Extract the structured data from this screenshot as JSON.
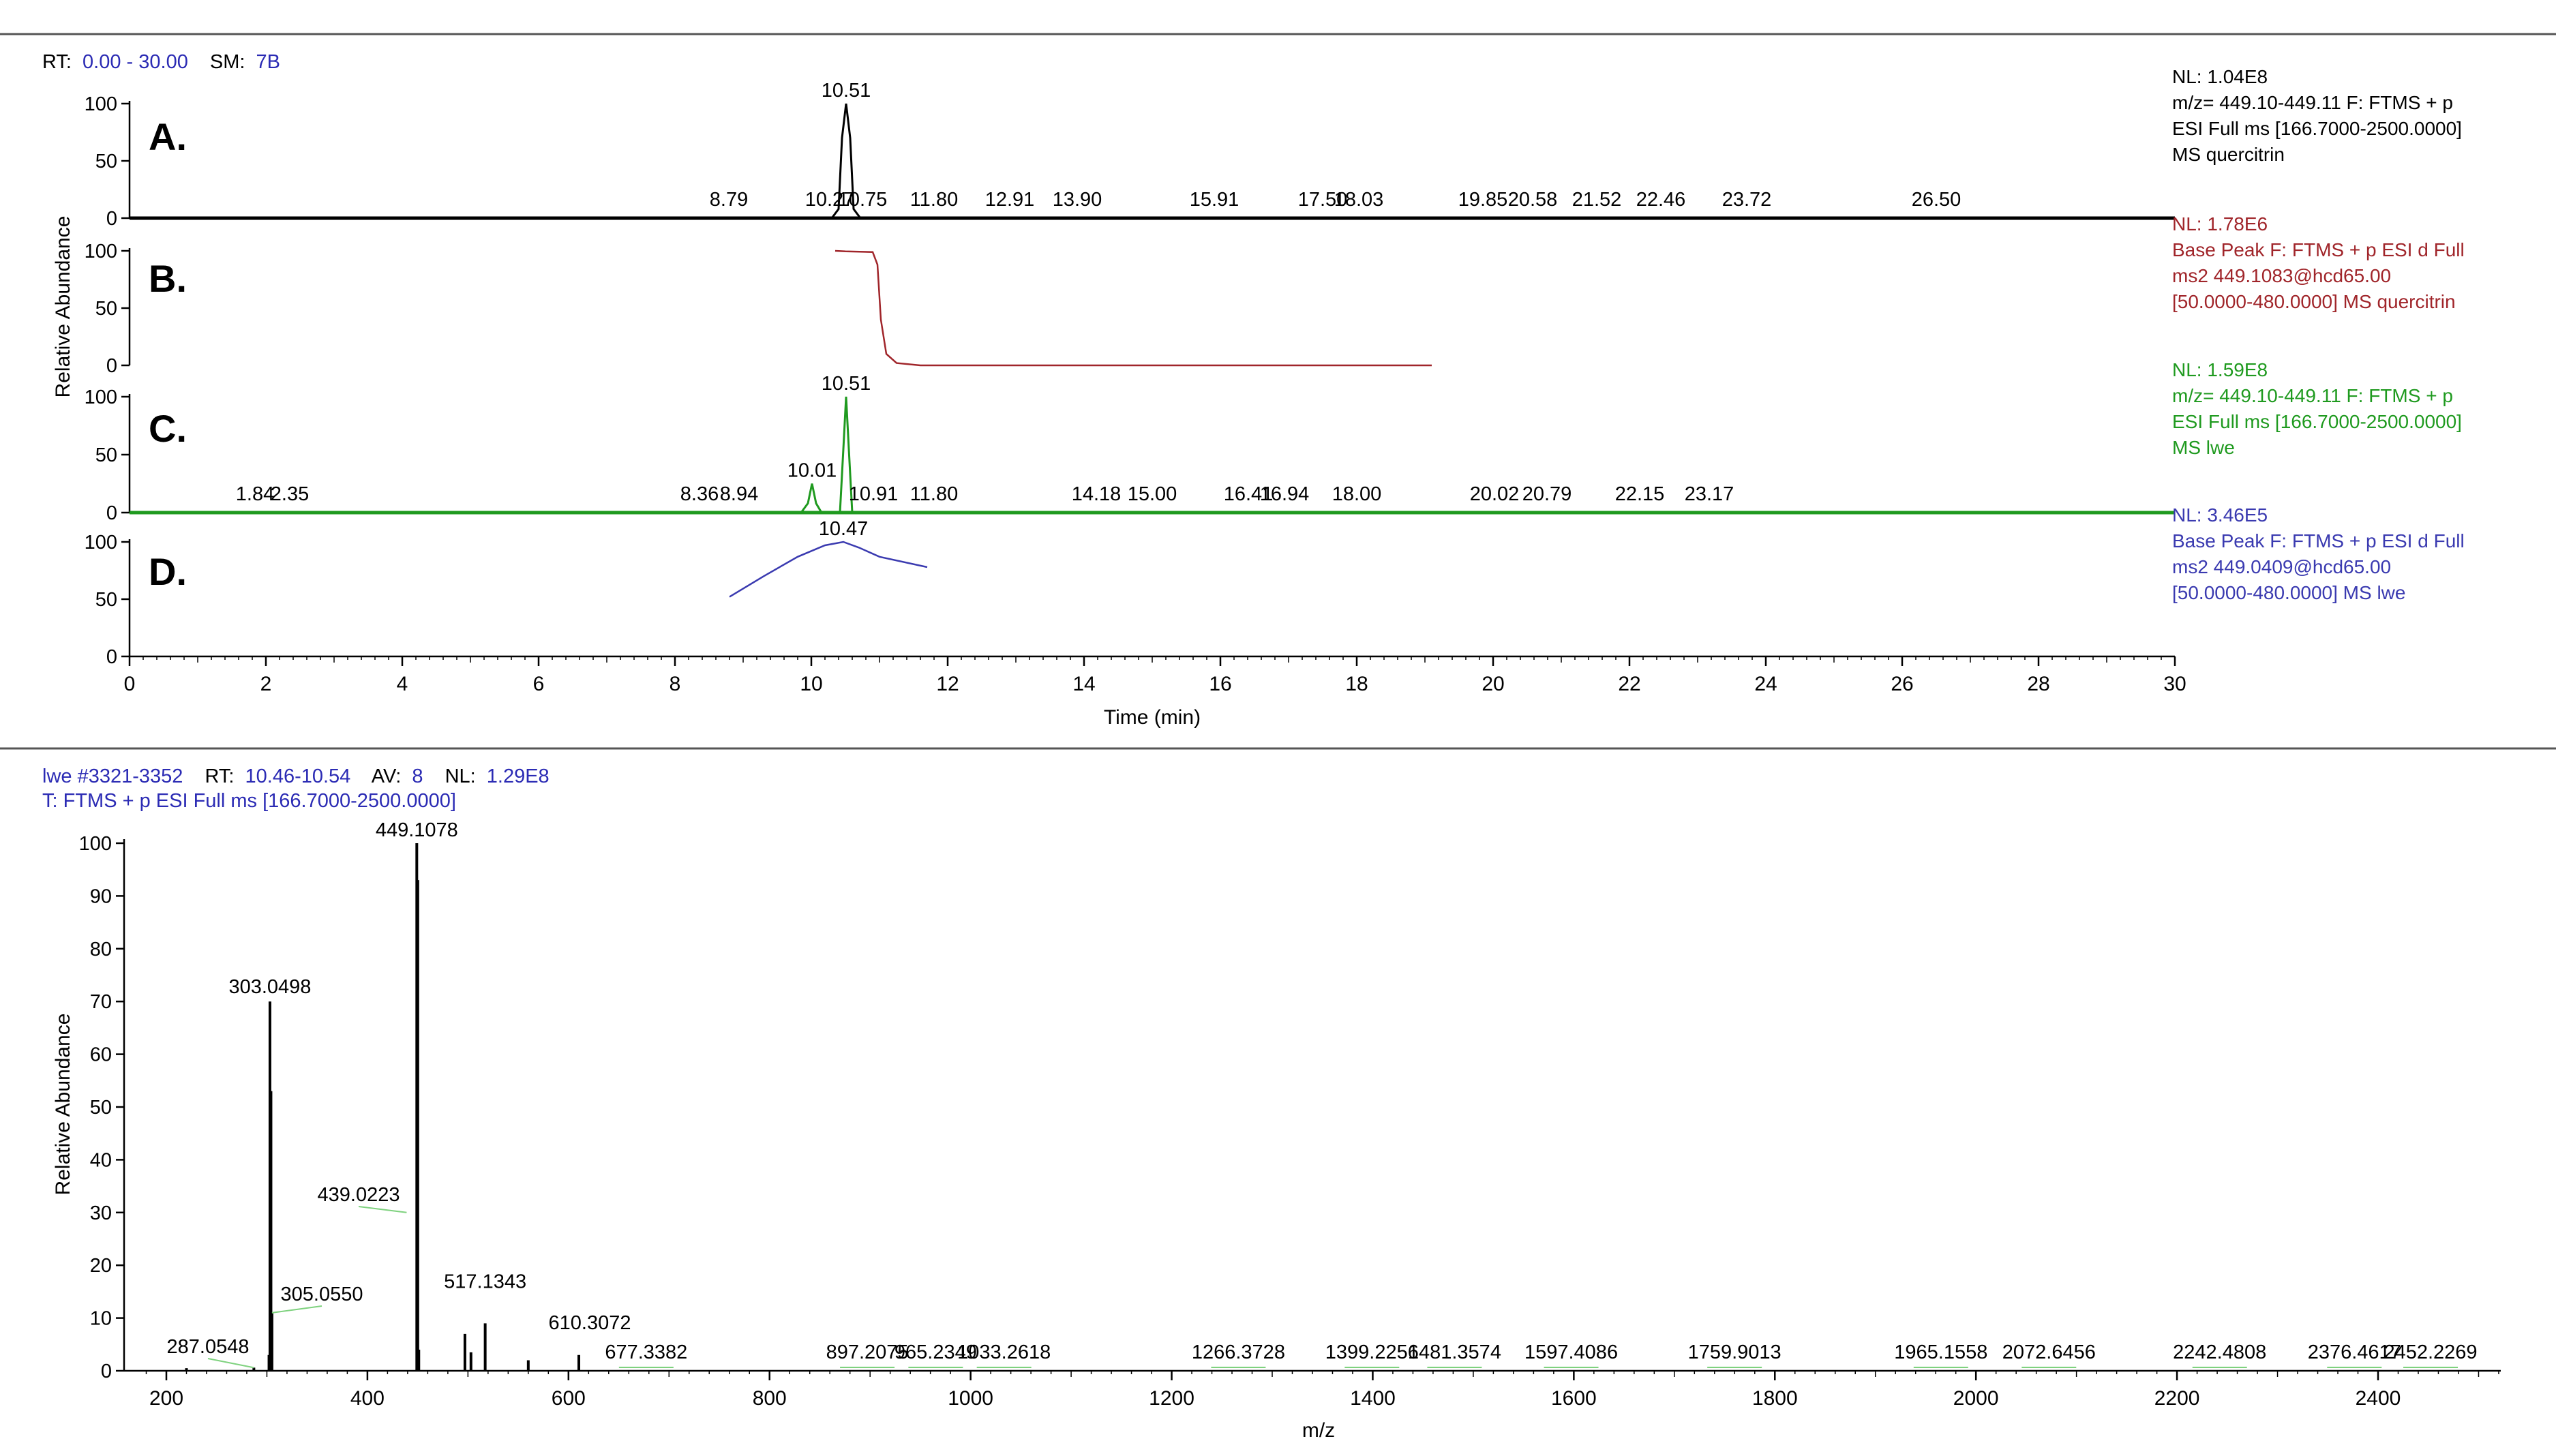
{
  "chromatogram": {
    "header": {
      "rt_label": "RT:",
      "rt_value": "0.00 - 30.00",
      "sm_label": "SM:",
      "sm_value": "7B"
    },
    "ylabel": "Relative Abundance",
    "xlabel": "Time (min)",
    "x_ticks": [
      "0",
      "2",
      "4",
      "6",
      "8",
      "10",
      "12",
      "14",
      "16",
      "18",
      "20",
      "22",
      "24",
      "26",
      "28",
      "30"
    ],
    "y_ticks": [
      "0",
      "50",
      "100"
    ]
  },
  "spectrum": {
    "header_line1": {
      "scan": "lwe #3321-3352",
      "rt_label": "RT:",
      "rt_value": "10.46-10.54",
      "av_label": "AV:",
      "av_value": "8",
      "nl_label": "NL:",
      "nl_value": "1.29E8"
    },
    "header_line2": "T: FTMS + p ESI Full ms [166.7000-2500.0000]",
    "ylabel": "Relative Abundance",
    "xlabel": "m/z",
    "x_ticks": [
      "200",
      "400",
      "600",
      "800",
      "1000",
      "1200",
      "1400",
      "1600",
      "1800",
      "2000",
      "2200",
      "2400"
    ],
    "y_ticks": [
      "0",
      "10",
      "20",
      "30",
      "40",
      "50",
      "60",
      "70",
      "80",
      "90",
      "100"
    ]
  },
  "colors": {
    "black": "#000000",
    "red": "#a0252a",
    "green": "#1f9a1f",
    "blue": "#3a3ab0",
    "header_blue": "#2b2bb4",
    "light_green": "#7fd27f",
    "separator": "#555555"
  },
  "chart_data": [
    {
      "type": "line",
      "panel_id": "A.",
      "color": "#000000",
      "x_range": [
        0,
        30
      ],
      "ylim": [
        0,
        100
      ],
      "info": [
        "NL: 1.04E8",
        "m/z= 449.10-449.11 F: FTMS + p",
        "ESI Full ms [166.7000-2500.0000]",
        "MS quercitrin"
      ],
      "peaks": [
        {
          "x": 10.51,
          "y": 100
        }
      ],
      "x": [
        0,
        10.3,
        10.4,
        10.45,
        10.51,
        10.57,
        10.62,
        10.72,
        30
      ],
      "y": [
        0,
        0,
        8,
        70,
        100,
        70,
        8,
        0,
        0
      ],
      "peak_labels": [
        {
          "x": 10.51,
          "y": 100,
          "label": "10.51"
        },
        {
          "x": 8.79,
          "y": 3,
          "label": "8.79"
        },
        {
          "x": 10.27,
          "y": 3,
          "label": "10.27"
        },
        {
          "x": 10.75,
          "y": 4,
          "label": "10.75"
        },
        {
          "x": 11.8,
          "y": 3,
          "label": "11.80"
        },
        {
          "x": 12.91,
          "y": 3,
          "label": "12.91"
        },
        {
          "x": 13.9,
          "y": 3,
          "label": "13.90"
        },
        {
          "x": 15.91,
          "y": 3,
          "label": "15.91"
        },
        {
          "x": 17.5,
          "y": 3,
          "label": "17.50"
        },
        {
          "x": 18.03,
          "y": 3,
          "label": "18.03"
        },
        {
          "x": 19.85,
          "y": 3,
          "label": "19.85"
        },
        {
          "x": 20.58,
          "y": 3,
          "label": "20.58"
        },
        {
          "x": 21.52,
          "y": 3,
          "label": "21.52"
        },
        {
          "x": 22.46,
          "y": 3,
          "label": "22.46"
        },
        {
          "x": 23.72,
          "y": 3,
          "label": "23.72"
        },
        {
          "x": 26.5,
          "y": 3,
          "label": "26.50"
        }
      ]
    },
    {
      "type": "line",
      "panel_id": "B.",
      "color": "#a0252a",
      "x_range": [
        0,
        30
      ],
      "ylim": [
        0,
        100
      ],
      "info": [
        "NL: 1.78E6",
        "Base Peak F: FTMS + p ESI d Full",
        "ms2 449.1083@hcd65.00",
        "[50.0000-480.0000]  MS quercitrin"
      ],
      "x": [
        10.35,
        10.5,
        10.9,
        10.97,
        11.02,
        11.1,
        11.25,
        11.6,
        19.1
      ],
      "y": [
        100,
        99.5,
        99,
        88,
        40,
        10,
        2,
        0,
        0
      ],
      "peak_labels": []
    },
    {
      "type": "line",
      "panel_id": "C.",
      "color": "#1f9a1f",
      "x_range": [
        0,
        30
      ],
      "ylim": [
        0,
        100
      ],
      "info": [
        "NL: 1.59E8",
        "m/z= 449.10-449.11 F: FTMS + p",
        "ESI Full ms [166.7000-2500.0000]",
        "MS lwe"
      ],
      "x": [
        0,
        9.85,
        9.95,
        10.01,
        10.07,
        10.15,
        10.42,
        10.47,
        10.51,
        10.55,
        10.6,
        30
      ],
      "y": [
        0,
        0,
        8,
        25,
        8,
        0,
        0,
        55,
        100,
        55,
        0,
        0
      ],
      "peak_labels": [
        {
          "x": 10.51,
          "y": 100,
          "label": "10.51"
        },
        {
          "x": 10.01,
          "y": 25,
          "label": "10.01"
        },
        {
          "x": 1.84,
          "y": 3,
          "label": "1.84"
        },
        {
          "x": 2.35,
          "y": 3,
          "label": "2.35"
        },
        {
          "x": 8.36,
          "y": 3,
          "label": "8.36"
        },
        {
          "x": 8.94,
          "y": 3,
          "label": "8.94"
        },
        {
          "x": 10.91,
          "y": 3,
          "label": "10.91"
        },
        {
          "x": 11.8,
          "y": 3,
          "label": "11.80"
        },
        {
          "x": 14.18,
          "y": 3,
          "label": "14.18"
        },
        {
          "x": 15.0,
          "y": 3,
          "label": "15.00"
        },
        {
          "x": 16.41,
          "y": 3,
          "label": "16.41"
        },
        {
          "x": 16.94,
          "y": 3,
          "label": "16.94"
        },
        {
          "x": 18.0,
          "y": 3,
          "label": "18.00"
        },
        {
          "x": 20.02,
          "y": 3,
          "label": "20.02"
        },
        {
          "x": 20.79,
          "y": 3,
          "label": "20.79"
        },
        {
          "x": 22.15,
          "y": 3,
          "label": "22.15"
        },
        {
          "x": 23.17,
          "y": 3,
          "label": "23.17"
        }
      ]
    },
    {
      "type": "line",
      "panel_id": "D.",
      "color": "#3a3ab0",
      "x_range": [
        0,
        30
      ],
      "ylim": [
        0,
        100
      ],
      "info": [
        "NL: 3.46E5",
        "Base Peak F: FTMS + p ESI d Full",
        "ms2 449.0409@hcd65.00",
        "[50.0000-480.0000]  MS lwe"
      ],
      "x": [
        8.8,
        9.3,
        9.8,
        10.2,
        10.47,
        10.7,
        11.0,
        11.7
      ],
      "y": [
        52,
        70,
        87,
        97,
        100,
        95,
        87,
        78
      ],
      "peak_labels": [
        {
          "x": 10.47,
          "y": 100,
          "label": "10.47"
        }
      ]
    },
    {
      "type": "bar",
      "subtype": "mass_spectrum",
      "xlim": [
        166.7,
        2520
      ],
      "ylim": [
        0,
        100
      ],
      "x": [
        220,
        287.0548,
        302.1,
        303.0498,
        304.05,
        305.055,
        449.1078,
        450.11,
        451.1,
        497,
        503,
        517.1343,
        560,
        610.3072
      ],
      "y": [
        0.5,
        0.6,
        3,
        70,
        53,
        11,
        100,
        93,
        4,
        7,
        3.5,
        9,
        2,
        3
      ],
      "peak_labels": [
        {
          "x": 449.1078,
          "label": "449.1078",
          "y": 100
        },
        {
          "x": 303.0498,
          "label": "303.0498",
          "y": 70
        },
        {
          "x": 439.0223,
          "label": "439.0223",
          "y": 30
        },
        {
          "x": 305.055,
          "label": "305.0550",
          "y": 11
        },
        {
          "x": 517.1343,
          "label": "517.1343",
          "y": 9
        },
        {
          "x": 287.0548,
          "label": "287.0548",
          "y": 0.6
        },
        {
          "x": 610.3072,
          "label": "610.3072",
          "y": 3
        },
        {
          "x": 677.3382,
          "label": "677.3382",
          "y": 0.3
        },
        {
          "x": 897.2075,
          "label": "897.2075",
          "y": 0.3
        },
        {
          "x": 965.2349,
          "label": "965.2349",
          "y": 0.5
        },
        {
          "x": 1033.2618,
          "label": "1033.2618",
          "y": 0.3
        },
        {
          "x": 1266.3728,
          "label": "1266.3728",
          "y": 0.3
        },
        {
          "x": 1399.2256,
          "label": "1399.2256",
          "y": 0.3
        },
        {
          "x": 1481.3574,
          "label": "1481.3574",
          "y": 0.3
        },
        {
          "x": 1597.4086,
          "label": "1597.4086",
          "y": 0.3
        },
        {
          "x": 1759.9013,
          "label": "1759.9013",
          "y": 0.3
        },
        {
          "x": 1965.1558,
          "label": "1965.1558",
          "y": 0.3
        },
        {
          "x": 2072.6456,
          "label": "2072.6456",
          "y": 0.3
        },
        {
          "x": 2242.4808,
          "label": "2242.4808",
          "y": 0.3
        },
        {
          "x": 2376.4617,
          "label": "2376.4617",
          "y": 0.3
        },
        {
          "x": 2452.2269,
          "label": "2452.2269",
          "y": 0.3
        }
      ]
    }
  ]
}
